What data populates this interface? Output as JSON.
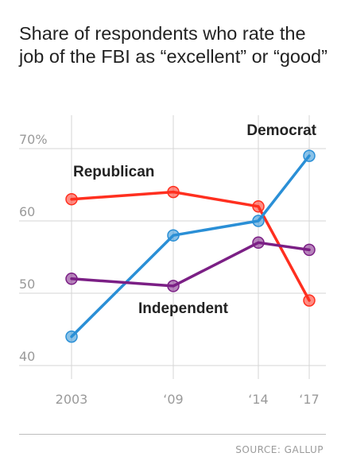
{
  "chart_data": {
    "type": "line",
    "title": "Share of respondents who rate the job of the FBI as “excellent” or “good”",
    "x": [
      2003,
      2009,
      2014,
      2017
    ],
    "x_tick_labels": [
      "2003",
      "‘09",
      "‘14",
      "‘17"
    ],
    "y_ticks": [
      40,
      50,
      60,
      70
    ],
    "y_tick_labels": [
      "40",
      "50",
      "60",
      "70%"
    ],
    "ylim": [
      40,
      72
    ],
    "grid": true,
    "series": [
      {
        "name": "Republican",
        "values": [
          63,
          64,
          62,
          49
        ],
        "color": "#ff2f1f"
      },
      {
        "name": "Democrat",
        "values": [
          44,
          58,
          60,
          69
        ],
        "color": "#2a8fd6"
      },
      {
        "name": "Independent",
        "values": [
          52,
          51,
          57,
          56
        ],
        "color": "#7b1f85"
      }
    ],
    "source": "SOURCE: GALLUP"
  }
}
